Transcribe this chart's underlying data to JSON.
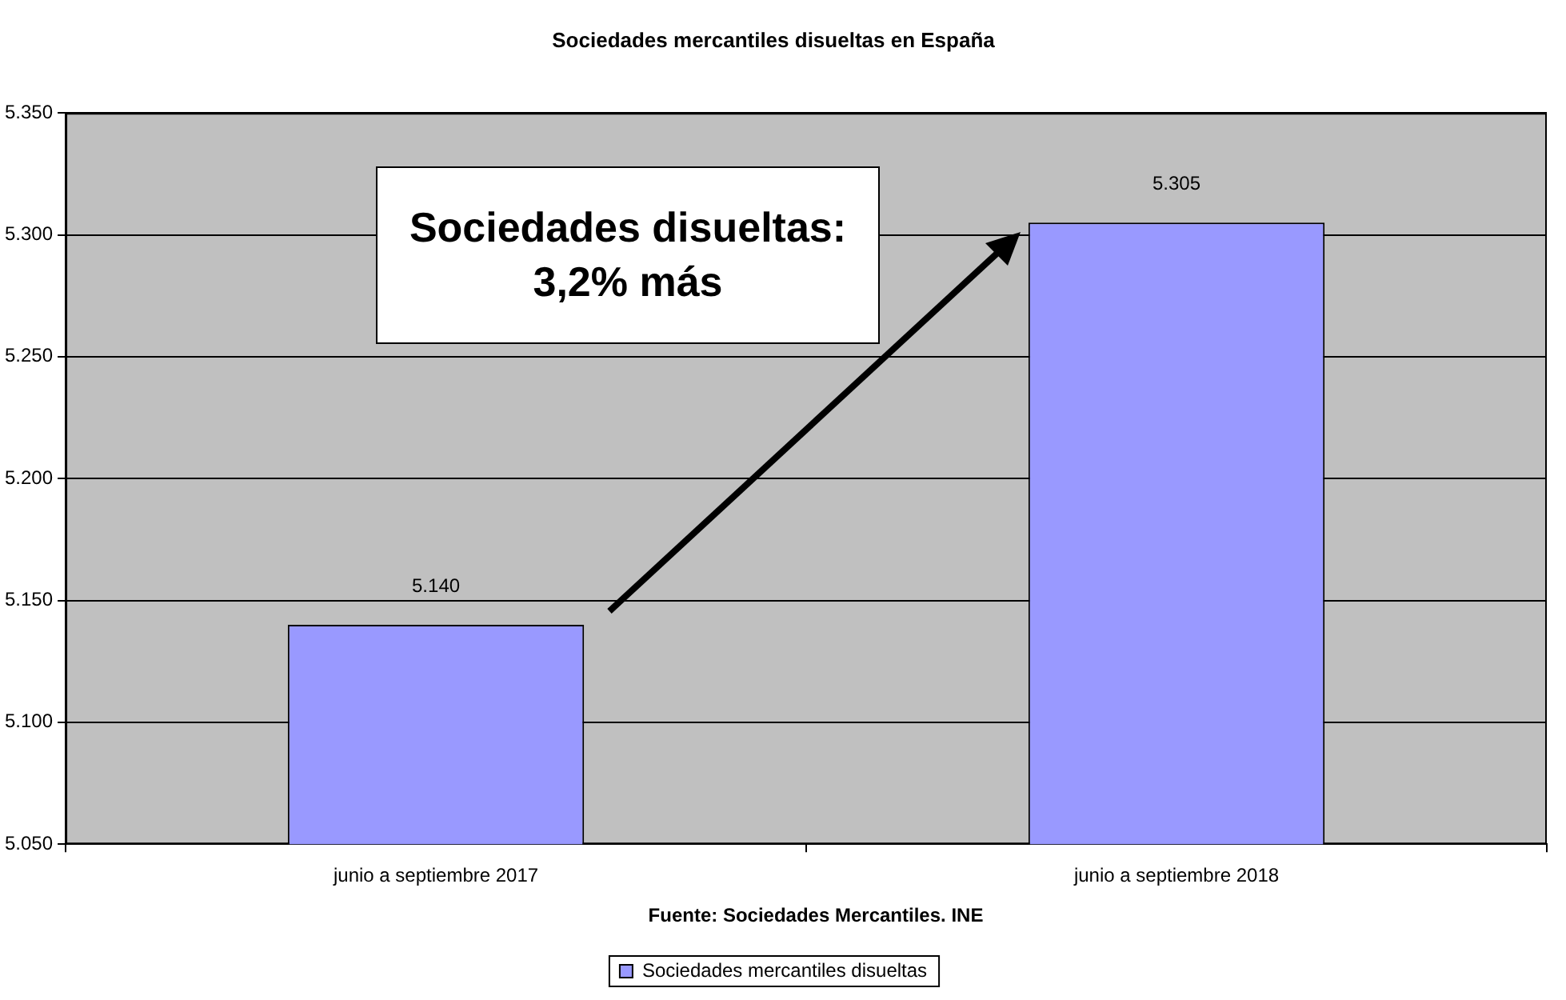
{
  "chart_data": {
    "type": "bar",
    "title": "Sociedades mercantiles disueltas en España",
    "categories": [
      "junio a septiembre 2017",
      "junio a septiembre 2018"
    ],
    "series": [
      {
        "name": "Sociedades mercantiles disueltas",
        "color": "#9999ff",
        "values": [
          5140,
          5305
        ],
        "value_labels": [
          "5.140",
          "5.305"
        ]
      }
    ],
    "ylim": [
      5050,
      5350
    ],
    "yticks": [
      {
        "value": 5050,
        "label": "5.050"
      },
      {
        "value": 5100,
        "label": "5.100"
      },
      {
        "value": 5150,
        "label": "5.150"
      },
      {
        "value": 5200,
        "label": "5.200"
      },
      {
        "value": 5250,
        "label": "5.250"
      },
      {
        "value": 5300,
        "label": "5.300"
      },
      {
        "value": 5350,
        "label": "5.350"
      }
    ],
    "grid": "y",
    "legend": "bottom",
    "annotations": [
      "Sociedades disueltas: 3,2% más",
      "Fuente: Sociedades Mercantiles. INE"
    ]
  }
}
